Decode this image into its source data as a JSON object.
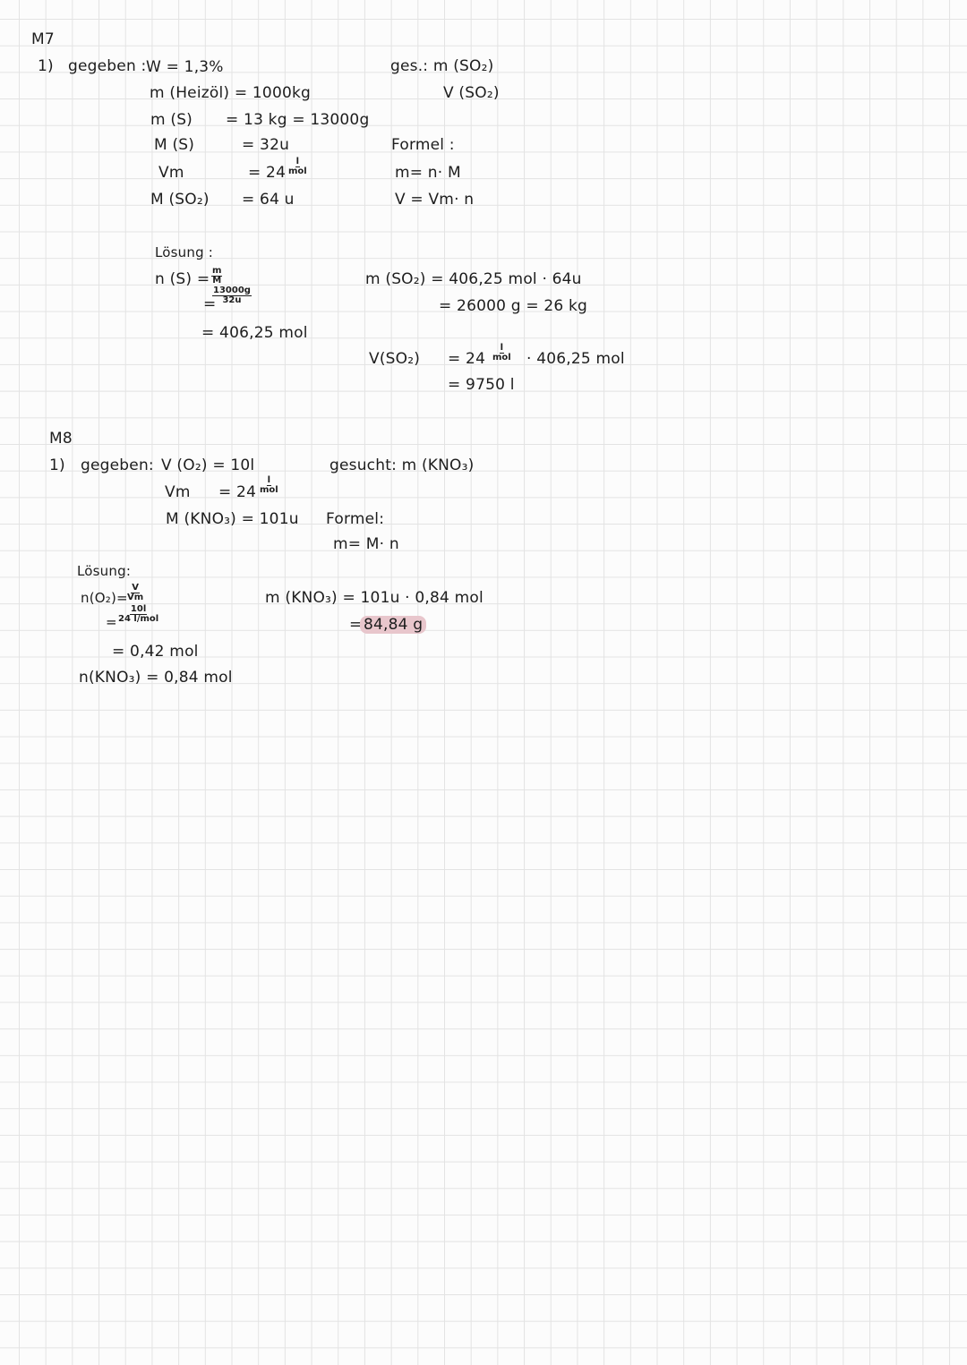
{
  "m7": {
    "heading": "M7",
    "task_number": "1)",
    "given_label": "gegeben :",
    "given": [
      {
        "lhs": "W",
        "rhs": "= 1,3%"
      },
      {
        "lhs": "m (Heizöl)",
        "rhs": "= 1000kg"
      },
      {
        "lhs": "m (S)",
        "rhs": "= 13 kg = 13000g"
      },
      {
        "lhs": "M (S)",
        "rhs": "= 32u"
      },
      {
        "lhs": "Vm",
        "rhs": "= 24",
        "unit_num": "l",
        "unit_den": "mol"
      },
      {
        "lhs": "M (SO₂)",
        "rhs": "= 64 u"
      }
    ],
    "wanted_label": "ges.:",
    "wanted": [
      "m (SO₂)",
      "V (SO₂)"
    ],
    "formula_label": "Formel :",
    "formulas": [
      "m= n· M",
      "V = Vm· n"
    ],
    "solution_label": "Lösung :",
    "n_lhs": "n (S) =",
    "n_frac_num": "m",
    "n_frac_den": "M",
    "n_step_num": "13000g",
    "n_step_den": "32u",
    "n_step_eq": "=",
    "n_result": "= 406,25 mol",
    "m_line1": "m (SO₂) = 406,25 mol · 64u",
    "m_line2": "= 26000 g = 26 kg",
    "v_lhs": "V(SO₂)",
    "v_eq": "= 24",
    "v_unit_num": "l",
    "v_unit_den": "mol",
    "v_rest": "· 406,25 mol",
    "v_result": "= 9750 l"
  },
  "m8": {
    "heading": "M8",
    "task_number": "1)",
    "given_label": "gegeben:",
    "given": [
      {
        "lhs": "V (O₂)",
        "rhs": "= 10l"
      },
      {
        "lhs": "Vm",
        "rhs": "= 24",
        "unit_num": "l",
        "unit_den": "mol"
      },
      {
        "lhs": "M (KNO₃)",
        "rhs": "= 101u"
      }
    ],
    "wanted": "gesucht: m (KNO₃)",
    "formula_label": "Formel:",
    "formula": "m= M· n",
    "solution_label": "Lösung:",
    "n_lhs": "n(O₂)=",
    "n_frac_num": "V",
    "n_frac_den": "Vm",
    "n_step_eq": "=",
    "n_step_num": "10l",
    "n_step_den": "24 l/mol",
    "n_result": "= 0,42 mol",
    "n_kno3": "n(KNO₃) = 0,84 mol",
    "m_line1": "m (KNO₃) = 101u · 0,84 mol",
    "m_eq": "=",
    "m_result": "84,84 g",
    "highlight_color": "#e8c6cc"
  }
}
